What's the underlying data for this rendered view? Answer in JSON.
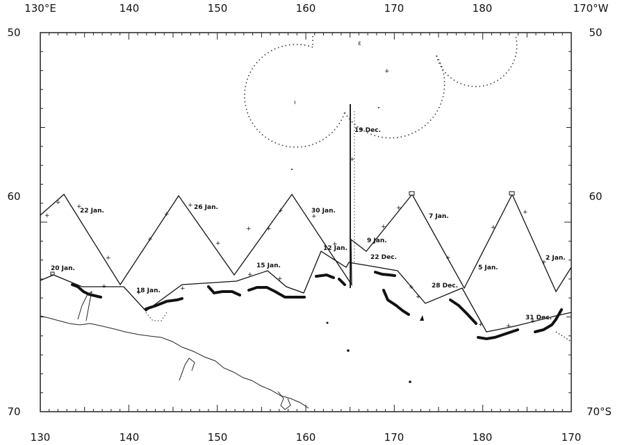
{
  "axes": {
    "top": [
      "130°E",
      "140",
      "150",
      "160",
      "170",
      "180",
      "170°W"
    ],
    "bottom": [
      "130",
      "140",
      "150",
      "160",
      "170",
      "180",
      "170"
    ],
    "left": [
      "50",
      "60",
      "70"
    ],
    "right": [
      "50",
      "60",
      "70°S"
    ]
  },
  "date_labels": {
    "d22jan": "22 Jan.",
    "d26jan": "26 Jan.",
    "d30jan": "30 Jan.",
    "d7jan": "7 Jan.",
    "d2jan": "2 Jan.",
    "d9jan": "9 Jan.",
    "d12jan": "12 Jan.",
    "d22dec": "22 Dec.",
    "d5jan": "5 Jan.",
    "d20jan": "20 Jan.",
    "d15jan": "15 Jan.",
    "d18jan": "18 Jan.",
    "d28dec": "28 Dec.",
    "d31dec": "31 Dec.",
    "d19dec": "19 Dec."
  },
  "colors": {
    "ink": "#111111",
    "paper": "#ffffff"
  }
}
